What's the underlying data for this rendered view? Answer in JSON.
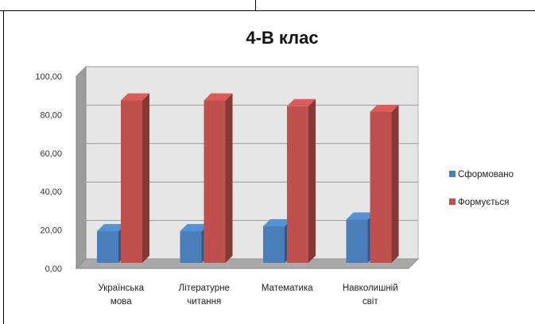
{
  "chart_data": {
    "type": "bar",
    "title": "4-В клас",
    "categories": [
      [
        "Українська",
        "мова"
      ],
      [
        "Літературне",
        "читання"
      ],
      [
        "Математика"
      ],
      [
        "Навколишній",
        "світ"
      ]
    ],
    "series": [
      {
        "name": "Сформовано",
        "color": "#4a7ebb",
        "values": [
          16.5,
          16.5,
          19,
          22.5
        ]
      },
      {
        "name": "Формується",
        "color": "#c0504d",
        "values": [
          84.5,
          84.5,
          81.5,
          78.5
        ]
      }
    ],
    "ylim": [
      0,
      100
    ],
    "yticks": [
      "0,00",
      "20,00",
      "40,00",
      "60,00",
      "80,00",
      "100,00"
    ],
    "grid": true,
    "legend_position": "right"
  }
}
